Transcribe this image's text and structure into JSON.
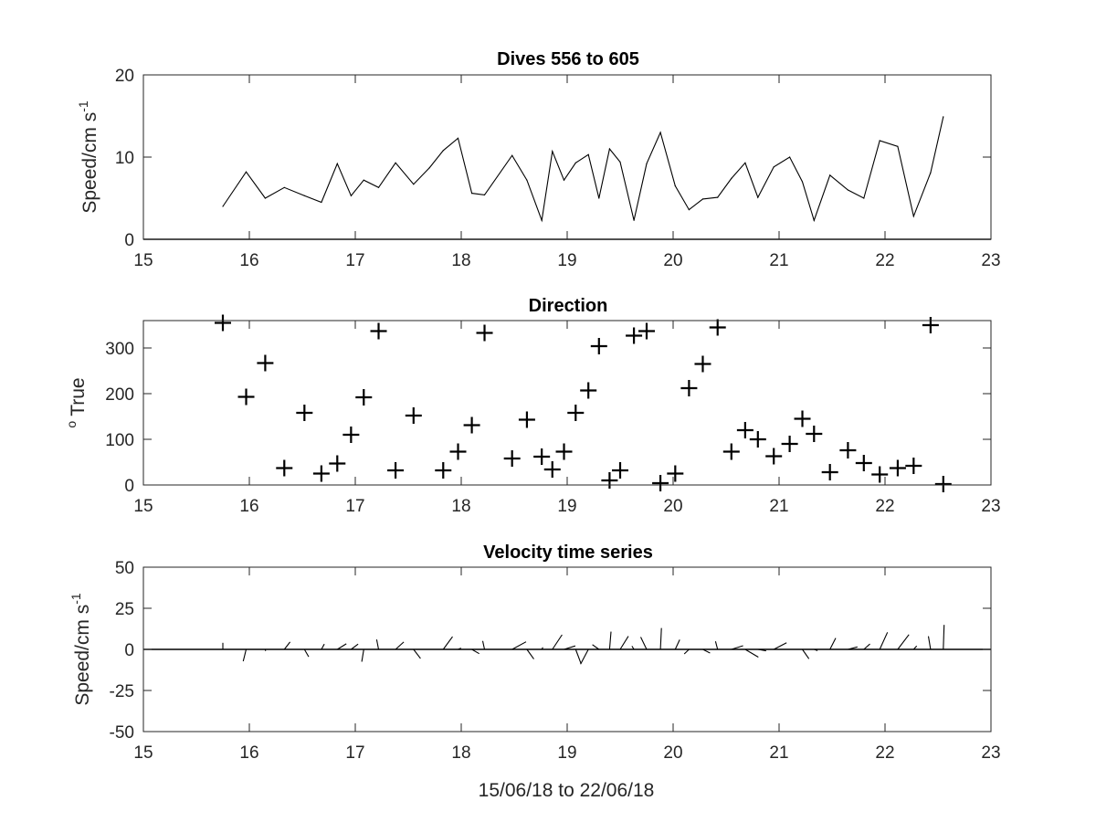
{
  "chart_data": [
    {
      "type": "line",
      "title": "Dives 556 to 605",
      "ylabel": "Speed/cm s",
      "ylabel_sup": "-1",
      "xlim": [
        15,
        23
      ],
      "ylim": [
        0,
        20
      ],
      "xticks": [
        15,
        16,
        17,
        18,
        19,
        20,
        21,
        22,
        23
      ],
      "yticks": [
        0,
        10,
        20
      ],
      "grid": false,
      "series": [
        {
          "x": [
            15.75,
            15.97,
            16.15,
            16.33,
            16.52,
            16.68,
            16.83,
            16.96,
            17.08,
            17.22,
            17.38,
            17.55,
            17.7,
            17.83,
            17.97,
            18.1,
            18.22,
            18.48,
            18.62,
            18.76,
            18.86,
            18.97,
            19.08,
            19.2,
            19.3,
            19.4,
            19.5,
            19.63,
            19.75,
            19.88,
            20.02,
            20.15,
            20.28,
            20.42,
            20.55,
            20.68,
            20.8,
            20.95,
            21.1,
            21.22,
            21.33,
            21.48,
            21.65,
            21.8,
            21.95,
            22.12,
            22.27,
            22.43,
            22.55
          ],
          "y": [
            4,
            8.2,
            5,
            6.3,
            5.3,
            4.5,
            9.2,
            5.3,
            7.2,
            6.3,
            9.3,
            6.7,
            8.7,
            10.8,
            12.3,
            5.6,
            5.4,
            10.2,
            7.2,
            2.3,
            10.7,
            7.2,
            9.3,
            10.3,
            5,
            11,
            9.4,
            2.3,
            9.2,
            13,
            6.5,
            3.6,
            4.9,
            5.1,
            7.4,
            9.3,
            5.1,
            8.8,
            10,
            7,
            2.3,
            7.8,
            6,
            5,
            12,
            11.3,
            2.8,
            8.1,
            14.9
          ]
        }
      ]
    },
    {
      "type": "scatter",
      "title": "Direction",
      "ylabel": "True",
      "ylabel_sup": "o",
      "xlim": [
        15,
        23
      ],
      "ylim": [
        0,
        360
      ],
      "xticks": [
        15,
        16,
        17,
        18,
        19,
        20,
        21,
        22,
        23
      ],
      "yticks": [
        0,
        100,
        200,
        300
      ],
      "marker": "+",
      "grid": false,
      "series": [
        {
          "x": [
            15.75,
            15.97,
            16.15,
            16.33,
            16.52,
            16.68,
            16.83,
            16.96,
            17.08,
            17.22,
            17.38,
            17.55,
            17.83,
            17.97,
            18.1,
            18.22,
            18.48,
            18.62,
            18.76,
            18.86,
            18.97,
            19.08,
            19.2,
            19.3,
            19.4,
            19.5,
            19.63,
            19.75,
            19.88,
            20.02,
            20.15,
            20.28,
            20.42,
            20.55,
            20.68,
            20.8,
            20.95,
            21.1,
            21.22,
            21.33,
            21.48,
            21.65,
            21.8,
            21.95,
            22.12,
            22.27,
            22.43,
            22.55
          ],
          "y": [
            355,
            193,
            267,
            37,
            158,
            25,
            47,
            110,
            192,
            337,
            32,
            152,
            32,
            73,
            131,
            333,
            58,
            143,
            62,
            34,
            73,
            158,
            207,
            304,
            10,
            32,
            327,
            337,
            4,
            25,
            212,
            265,
            345,
            73,
            120,
            100,
            63,
            90,
            145,
            112,
            28,
            76,
            48,
            23,
            37,
            42,
            350,
            2
          ]
        }
      ]
    },
    {
      "type": "quiver",
      "title": "Velocity time series",
      "ylabel": "Speed/cm s",
      "ylabel_sup": "-1",
      "xlabel": "15/06/18 to 22/06/18",
      "xlim": [
        15,
        23
      ],
      "ylim": [
        -50,
        50
      ],
      "xticks": [
        15,
        16,
        17,
        18,
        19,
        20,
        21,
        22,
        23
      ],
      "yticks": [
        50,
        25,
        0,
        -25,
        -50
      ],
      "ytick_labels": [
        "50",
        "25",
        "0",
        "-25",
        "-50"
      ],
      "grid": false,
      "sticks": [
        {
          "t": 15.75,
          "u": 0,
          "v": 4
        },
        {
          "t": 15.97,
          "u": -1.8,
          "v": -7.2
        },
        {
          "t": 16.15,
          "u": 0.2,
          "v": -1
        },
        {
          "t": 16.33,
          "u": 3.5,
          "v": 4.5
        },
        {
          "t": 16.52,
          "u": 2.6,
          "v": -4.5
        },
        {
          "t": 16.68,
          "u": 1.8,
          "v": 3.2
        },
        {
          "t": 16.83,
          "u": 5.5,
          "v": 3.4
        },
        {
          "t": 16.96,
          "u": 4.3,
          "v": 3.2
        },
        {
          "t": 17.08,
          "u": -1.2,
          "v": -7.5
        },
        {
          "t": 17.22,
          "u": -1.2,
          "v": 6
        },
        {
          "t": 17.38,
          "u": 5,
          "v": 4.5
        },
        {
          "t": 17.55,
          "u": 4.2,
          "v": -5.5
        },
        {
          "t": 17.83,
          "u": 5.7,
          "v": 7.7
        },
        {
          "t": 17.97,
          "u": 1.8,
          "v": 0.8
        },
        {
          "t": 18.1,
          "u": 4.5,
          "v": -2.6
        },
        {
          "t": 18.22,
          "u": -1.1,
          "v": 5.1
        },
        {
          "t": 18.48,
          "u": 8.5,
          "v": 4.6
        },
        {
          "t": 18.62,
          "u": 4.2,
          "v": -5.9
        },
        {
          "t": 18.76,
          "u": 0.7,
          "v": 1.3
        },
        {
          "t": 18.86,
          "u": 5.9,
          "v": 8.9
        },
        {
          "t": 18.97,
          "u": 6.9,
          "v": 2.1
        },
        {
          "t": 19.08,
          "u": 3.3,
          "v": -8.7
        },
        {
          "t": 19.2,
          "u": -4.8,
          "v": -9
        },
        {
          "t": 19.3,
          "u": -4,
          "v": 2.9
        },
        {
          "t": 19.4,
          "u": 0.9,
          "v": 10.8
        },
        {
          "t": 19.5,
          "u": 5,
          "v": 8
        },
        {
          "t": 19.63,
          "u": -1.2,
          "v": 2
        },
        {
          "t": 19.75,
          "u": -3.6,
          "v": 7.5
        },
        {
          "t": 19.88,
          "u": 0.6,
          "v": 13
        },
        {
          "t": 20.02,
          "u": 2.7,
          "v": 5.9
        },
        {
          "t": 20.15,
          "u": -2.9,
          "v": -2.8
        },
        {
          "t": 20.28,
          "u": 4.4,
          "v": -2.2
        },
        {
          "t": 20.42,
          "u": -1.3,
          "v": 4.9
        },
        {
          "t": 20.55,
          "u": 7.1,
          "v": 2.2
        },
        {
          "t": 20.68,
          "u": 8,
          "v": -4.7
        },
        {
          "t": 20.8,
          "u": 5,
          "v": -0.9
        },
        {
          "t": 20.95,
          "u": 7.8,
          "v": 4
        },
        {
          "t": 21.1,
          "u": 10,
          "v": 0
        },
        {
          "t": 21.22,
          "u": 4,
          "v": -5.7
        },
        {
          "t": 21.33,
          "u": 2.1,
          "v": -0.8
        },
        {
          "t": 21.48,
          "u": 3.5,
          "v": 6.9
        },
        {
          "t": 21.65,
          "u": 5.8,
          "v": 1.5
        },
        {
          "t": 21.8,
          "u": 3.7,
          "v": 3.3
        },
        {
          "t": 21.95,
          "u": 4.7,
          "v": 10.4
        },
        {
          "t": 22.12,
          "u": 6.8,
          "v": 9
        },
        {
          "t": 22.27,
          "u": 1.9,
          "v": 2.1
        },
        {
          "t": 22.43,
          "u": -1.3,
          "v": 8
        },
        {
          "t": 22.55,
          "u": 0.5,
          "v": 14.9
        }
      ]
    }
  ]
}
